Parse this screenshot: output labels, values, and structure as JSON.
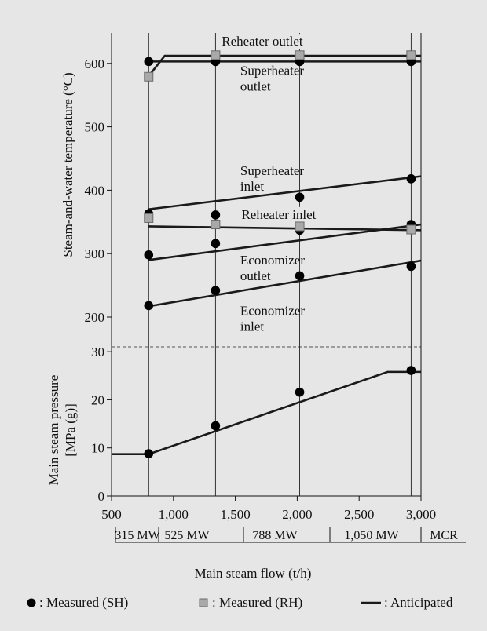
{
  "chart_data": {
    "type": "line",
    "xlabel": "Main steam flow (t/h)",
    "x_ticks": [
      500,
      1000,
      1500,
      2000,
      2500,
      3000
    ],
    "x_tick_labels": [
      "500",
      "1,000",
      "1,500",
      "2,000",
      "2,500",
      "3,000"
    ],
    "xlim": [
      500,
      3000
    ],
    "load_labels": [
      {
        "label": "315 MW",
        "x": 800
      },
      {
        "label": "525 MW",
        "x": 1340
      },
      {
        "label": "788 MW",
        "x": 2020
      },
      {
        "label": "1,050 MW",
        "x": 2630
      },
      {
        "label": "MCR",
        "x": 2920
      }
    ],
    "vlines": [
      800,
      1340,
      2020,
      2920
    ],
    "temperature_panel": {
      "ylabel": "Steam-and-water temperature (°C)",
      "ylim": [
        170,
        645
      ],
      "y_ticks": [
        200,
        300,
        400,
        500,
        600
      ],
      "anticipated": [
        {
          "name": "Reheater outlet",
          "points": [
            [
              800,
              580
            ],
            [
              930,
              612
            ],
            [
              3000,
              612
            ]
          ]
        },
        {
          "name": "Superheater outlet",
          "points": [
            [
              800,
              603
            ],
            [
              3000,
              603
            ]
          ]
        },
        {
          "name": "Superheater inlet",
          "points": [
            [
              800,
              370
            ],
            [
              3000,
              422
            ]
          ]
        },
        {
          "name": "Reheater inlet",
          "points": [
            [
              800,
              343
            ],
            [
              3000,
              337
            ]
          ]
        },
        {
          "name": "Economizer outlet",
          "points": [
            [
              800,
              290
            ],
            [
              3000,
              346
            ]
          ]
        },
        {
          "name": "Economizer inlet",
          "points": [
            [
              800,
              217
            ],
            [
              3000,
              289
            ]
          ]
        }
      ],
      "measured_sh": [
        [
          800,
          603
        ],
        [
          1340,
          603
        ],
        [
          2020,
          603
        ],
        [
          2920,
          603
        ],
        [
          800,
          363
        ],
        [
          1340,
          361
        ],
        [
          2020,
          389
        ],
        [
          2920,
          418
        ],
        [
          800,
          298
        ],
        [
          1340,
          316
        ],
        [
          2020,
          337
        ],
        [
          2920,
          346
        ],
        [
          800,
          218
        ],
        [
          1340,
          242
        ],
        [
          2020,
          265
        ],
        [
          2920,
          280
        ]
      ],
      "measured_rh": [
        [
          800,
          579
        ],
        [
          1340,
          613
        ],
        [
          2020,
          613
        ],
        [
          2920,
          613
        ],
        [
          800,
          356
        ],
        [
          1340,
          346
        ],
        [
          2020,
          343
        ],
        [
          2920,
          338
        ]
      ],
      "annotations": [
        {
          "lines": [
            "Reheater outlet"
          ],
          "x": 1390,
          "y": 628
        },
        {
          "lines": [
            "Superheater",
            "outlet"
          ],
          "x": 1540,
          "y": 582
        },
        {
          "lines": [
            "Superheater",
            "inlet"
          ],
          "x": 1540,
          "y": 424
        },
        {
          "lines": [
            "Reheater inlet"
          ],
          "x": 1550,
          "y": 355
        },
        {
          "lines": [
            "Economizer",
            "outlet"
          ],
          "x": 1540,
          "y": 283
        },
        {
          "lines": [
            "Economizer",
            "inlet"
          ],
          "x": 1540,
          "y": 203
        }
      ]
    },
    "pressure_panel": {
      "ylabel": "Main steam pressure [MPa (g)]",
      "ylim": [
        0,
        31
      ],
      "y_ticks": [
        0,
        10,
        20,
        30
      ],
      "anticipated": [
        {
          "name": "Main steam pressure",
          "points": [
            [
              500,
              8.7
            ],
            [
              800,
              8.7
            ],
            [
              2730,
              25.8
            ],
            [
              3000,
              25.8
            ]
          ]
        }
      ],
      "measured_sh": [
        [
          800,
          8.8
        ],
        [
          1340,
          14.6
        ],
        [
          2020,
          21.6
        ],
        [
          2920,
          26.1
        ]
      ]
    },
    "legend": [
      {
        "marker": "circle",
        "label": ": Measured (SH)"
      },
      {
        "marker": "square",
        "label": ": Measured (RH)"
      },
      {
        "marker": "line",
        "label": ": Anticipated"
      }
    ],
    "colors": {
      "background": "#e6e6e6",
      "line": "#1a1a1a",
      "sh_marker": "#000000",
      "rh_marker_fill": "#a9a9a9",
      "rh_marker_stroke": "#6a6a6a"
    }
  }
}
